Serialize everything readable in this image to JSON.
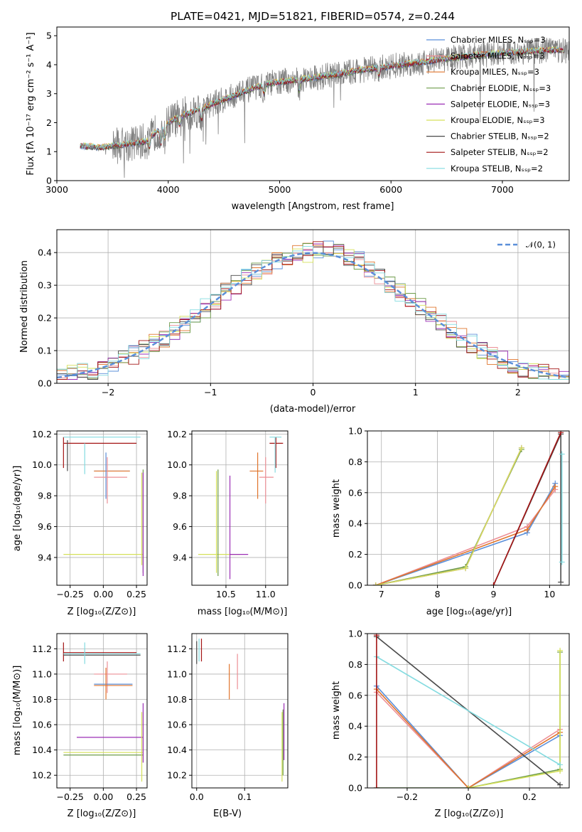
{
  "colors": {
    "Chabrier MILES": "#5b8fd9",
    "Salpeter MILES": "#ec8f96",
    "Kroupa MILES": "#e0752d",
    "Chabrier ELODIE": "#6d9b4a",
    "Salpeter ELODIE": "#9b2fb5",
    "Kroupa ELODIE": "#d5e05a",
    "Chabrier STELIB": "#4a4a4a",
    "Salpeter STELIB": "#a31414",
    "Kroupa STELIB": "#84dbe0",
    "data": "#808080"
  },
  "chart_data": [
    {
      "id": "spectrum",
      "type": "line",
      "title": "PLATE=0421, MJD=51821, FIBERID=0574, z=0.244",
      "xlabel": "wavelength [Angstrom, rest frame]",
      "ylabel": "Flux [fλ 10⁻¹⁷ erg cm⁻² s⁻¹ A⁻¹]",
      "xlim": [
        3000,
        7600
      ],
      "ylim": [
        0,
        5.3
      ],
      "xticks": [
        3000,
        4000,
        5000,
        6000,
        7000
      ],
      "yticks": [
        0,
        1,
        2,
        3,
        4,
        5
      ],
      "grid": false,
      "legend_position": "top-right",
      "legend": [
        "Chabrier MILES, N_SSP=3",
        "Salpeter MILES, N_SSP=3",
        "Kroupa MILES, N_SSP=3",
        "Chabrier ELODIE, N_SSP=3",
        "Salpeter ELODIE, N_SSP=3",
        "Kroupa ELODIE, N_SSP=3",
        "Chabrier STELIB, N_SSP=2",
        "Salpeter STELIB, N_SSP=2",
        "Kroupa STELIB, N_SSP=2"
      ],
      "legend_keys": [
        "Chabrier MILES",
        "Salpeter MILES",
        "Kroupa MILES",
        "Chabrier ELODIE",
        "Salpeter ELODIE",
        "Kroupa ELODIE",
        "Chabrier STELIB",
        "Salpeter STELIB",
        "Kroupa STELIB"
      ],
      "continuum": {
        "x": [
          3200,
          3400,
          3600,
          3800,
          3950,
          4100,
          4300,
          4500,
          4700,
          4900,
          5100,
          5300,
          5500,
          5700,
          5900,
          6100,
          6300,
          6500,
          6800,
          7000,
          7200,
          7400
        ],
        "y": [
          1.2,
          1.15,
          1.25,
          1.35,
          1.9,
          2.2,
          2.5,
          2.8,
          3.1,
          3.35,
          3.45,
          3.55,
          3.65,
          3.8,
          3.9,
          4.0,
          4.1,
          4.2,
          4.35,
          4.4,
          4.45,
          4.5
        ]
      }
    },
    {
      "id": "residuals",
      "type": "line",
      "xlabel": "(data-model)/error",
      "ylabel": "Normed distribution",
      "xlim": [
        -2.5,
        2.5
      ],
      "ylim": [
        0,
        0.47
      ],
      "xticks": [
        -2,
        -1,
        0,
        1,
        2
      ],
      "yticks": [
        0.0,
        0.1,
        0.2,
        0.3,
        0.4
      ],
      "grid": true,
      "legend_position": "top-right",
      "legend": [
        "𝒩(0, 1)"
      ],
      "normal_color": "#5b8fd9"
    },
    {
      "id": "age-vs-Z",
      "type": "scatter",
      "xlabel": "Z [log₁₀(Z/Z⊙)]",
      "ylabel": "age  [log₁₀(age/yr)]",
      "xlim": [
        -0.35,
        0.33
      ],
      "ylim": [
        9.22,
        10.22
      ],
      "xticks": [
        -0.25,
        0.0,
        0.25
      ],
      "yticks": [
        9.4,
        9.6,
        9.8,
        10.0,
        10.2
      ],
      "grid": true,
      "segments": [
        {
          "model": "Salpeter STELIB",
          "x": [
            -0.3,
            0.25
          ],
          "y": [
            10.14,
            10.14
          ]
        },
        {
          "model": "Salpeter STELIB",
          "x": [
            -0.3,
            -0.3
          ],
          "y": [
            9.98,
            10.18
          ]
        },
        {
          "model": "Chabrier STELIB",
          "x": [
            -0.27,
            -0.27
          ],
          "y": [
            9.96,
            10.16
          ]
        },
        {
          "model": "Kroupa STELIB",
          "x": [
            -0.3,
            0.28
          ],
          "y": [
            10.18,
            10.18
          ]
        },
        {
          "model": "Kroupa STELIB",
          "x": [
            -0.14,
            -0.14
          ],
          "y": [
            9.94,
            10.14
          ]
        },
        {
          "model": "Chabrier MILES",
          "x": [
            -0.07,
            0.2
          ],
          "y": [
            9.96,
            9.96
          ]
        },
        {
          "model": "Kroupa MILES",
          "x": [
            -0.07,
            0.2
          ],
          "y": [
            9.96,
            9.96
          ]
        },
        {
          "model": "Chabrier MILES",
          "x": [
            0.02,
            0.02
          ],
          "y": [
            9.78,
            10.08
          ]
        },
        {
          "model": "Salpeter MILES",
          "x": [
            -0.07,
            0.18
          ],
          "y": [
            9.92,
            9.92
          ]
        },
        {
          "model": "Salpeter MILES",
          "x": [
            0.03,
            0.03
          ],
          "y": [
            9.75,
            10.05
          ]
        },
        {
          "model": "Kroupa ELODIE",
          "x": [
            -0.3,
            0.3
          ],
          "y": [
            9.42,
            9.42
          ]
        },
        {
          "model": "Chabrier ELODIE",
          "x": [
            0.3,
            0.3
          ],
          "y": [
            9.3,
            9.97
          ]
        },
        {
          "model": "Salpeter ELODIE",
          "x": [
            0.3,
            0.3
          ],
          "y": [
            9.28,
            9.95
          ]
        },
        {
          "model": "Kroupa ELODIE",
          "x": [
            0.29,
            0.29
          ],
          "y": [
            9.35,
            9.95
          ]
        }
      ]
    },
    {
      "id": "age-vs-mass",
      "type": "scatter",
      "xlabel": "mass [log₁₀(M/M⊙)]",
      "ylabel": "",
      "xlim": [
        10.07,
        11.28
      ],
      "ylim": [
        9.22,
        10.22
      ],
      "xticks": [
        10.5,
        11.0
      ],
      "yticks": [
        9.4,
        9.6,
        9.8,
        10.0,
        10.2
      ],
      "grid": true,
      "segments": [
        {
          "model": "Salpeter STELIB",
          "x": [
            11.05,
            11.22
          ],
          "y": [
            10.14,
            10.14
          ]
        },
        {
          "model": "Salpeter STELIB",
          "x": [
            11.13,
            11.13
          ],
          "y": [
            9.98,
            10.18
          ]
        },
        {
          "model": "Kroupa STELIB",
          "x": [
            11.05,
            11.2
          ],
          "y": [
            10.18,
            10.18
          ]
        },
        {
          "model": "Kroupa STELIB",
          "x": [
            11.12,
            11.12
          ],
          "y": [
            9.95,
            10.18
          ]
        },
        {
          "model": "Kroupa MILES",
          "x": [
            10.8,
            10.97
          ],
          "y": [
            9.96,
            9.96
          ]
        },
        {
          "model": "Kroupa MILES",
          "x": [
            10.9,
            10.9
          ],
          "y": [
            9.78,
            10.08
          ]
        },
        {
          "model": "Salpeter MILES",
          "x": [
            10.92,
            11.1
          ],
          "y": [
            9.92,
            9.92
          ]
        },
        {
          "model": "Salpeter MILES",
          "x": [
            11.0,
            11.0
          ],
          "y": [
            9.75,
            10.05
          ]
        },
        {
          "model": "Kroupa ELODIE",
          "x": [
            10.15,
            10.68
          ],
          "y": [
            9.42,
            9.42
          ]
        },
        {
          "model": "Salpeter ELODIE",
          "x": [
            10.55,
            10.78
          ],
          "y": [
            9.42,
            9.42
          ]
        },
        {
          "model": "Chabrier ELODIE",
          "x": [
            10.4,
            10.4
          ],
          "y": [
            9.28,
            9.97
          ]
        },
        {
          "model": "Kroupa ELODIE",
          "x": [
            10.38,
            10.38
          ],
          "y": [
            9.3,
            9.96
          ]
        },
        {
          "model": "Salpeter ELODIE",
          "x": [
            10.55,
            10.55
          ],
          "y": [
            9.26,
            9.93
          ]
        }
      ]
    },
    {
      "id": "weight-vs-age",
      "type": "line",
      "xlabel": "age  [log₁₀(age/yr)]",
      "ylabel": "mass weight",
      "xlim": [
        6.75,
        10.35
      ],
      "ylim": [
        0.0,
        1.0
      ],
      "xticks": [
        7,
        8,
        9,
        10
      ],
      "yticks": [
        0.0,
        0.2,
        0.4,
        0.6,
        0.8,
        1.0
      ],
      "grid": true,
      "series": [
        {
          "model": "Chabrier MILES",
          "x": [
            6.9,
            9.6,
            10.1
          ],
          "y": [
            0.0,
            0.34,
            0.66
          ]
        },
        {
          "model": "Salpeter MILES",
          "x": [
            6.9,
            9.6,
            10.1
          ],
          "y": [
            0.0,
            0.38,
            0.62
          ]
        },
        {
          "model": "Kroupa MILES",
          "x": [
            6.9,
            9.6,
            10.1
          ],
          "y": [
            0.0,
            0.36,
            0.64
          ]
        },
        {
          "model": "Chabrier ELODIE",
          "x": [
            6.9,
            8.5,
            9.5
          ],
          "y": [
            0.0,
            0.12,
            0.88
          ]
        },
        {
          "model": "Salpeter ELODIE",
          "x": [
            6.9,
            8.5,
            9.5
          ],
          "y": [
            0.0,
            0.11,
            0.89
          ]
        },
        {
          "model": "Kroupa ELODIE",
          "x": [
            6.9,
            8.5,
            9.5
          ],
          "y": [
            0.0,
            0.11,
            0.89
          ]
        },
        {
          "model": "Chabrier STELIB",
          "x": [
            9.0,
            10.2,
            10.2
          ],
          "y": [
            0.0,
            0.98,
            0.02
          ]
        },
        {
          "model": "Salpeter STELIB",
          "x": [
            9.0,
            10.2
          ],
          "y": [
            0.0,
            0.99
          ]
        },
        {
          "model": "Kroupa STELIB",
          "x": [
            10.22,
            10.22
          ],
          "y": [
            0.15,
            0.85
          ]
        }
      ]
    },
    {
      "id": "mass-vs-Z",
      "type": "scatter",
      "xlabel": "Z [log₁₀(Z/Z⊙)]",
      "ylabel": "mass [log₁₀(M/M⊙)]",
      "xlim": [
        -0.35,
        0.33
      ],
      "ylim": [
        10.1,
        11.32
      ],
      "xticks": [
        -0.25,
        0.0,
        0.25
      ],
      "yticks": [
        10.2,
        10.4,
        10.6,
        10.8,
        11.0,
        11.2
      ],
      "grid": true,
      "segments": [
        {
          "model": "Salpeter STELIB",
          "x": [
            -0.3,
            0.25
          ],
          "y": [
            11.17,
            11.17
          ]
        },
        {
          "model": "Salpeter STELIB",
          "x": [
            -0.3,
            -0.3
          ],
          "y": [
            11.1,
            11.25
          ]
        },
        {
          "model": "Chabrier STELIB",
          "x": [
            -0.3,
            0.28
          ],
          "y": [
            11.15,
            11.15
          ]
        },
        {
          "model": "Kroupa STELIB",
          "x": [
            -0.3,
            0.28
          ],
          "y": [
            11.16,
            11.16
          ]
        },
        {
          "model": "Kroupa STELIB",
          "x": [
            -0.14,
            -0.14
          ],
          "y": [
            11.08,
            11.25
          ]
        },
        {
          "model": "Salpeter MILES",
          "x": [
            -0.07,
            0.18
          ],
          "y": [
            11.0,
            11.0
          ]
        },
        {
          "model": "Salpeter MILES",
          "x": [
            0.03,
            0.03
          ],
          "y": [
            10.85,
            11.1
          ]
        },
        {
          "model": "Chabrier MILES",
          "x": [
            -0.07,
            0.22
          ],
          "y": [
            10.92,
            10.92
          ]
        },
        {
          "model": "Kroupa MILES",
          "x": [
            -0.07,
            0.22
          ],
          "y": [
            10.91,
            10.91
          ]
        },
        {
          "model": "Kroupa MILES",
          "x": [
            0.02,
            0.02
          ],
          "y": [
            10.8,
            11.05
          ]
        },
        {
          "model": "Salpeter ELODIE",
          "x": [
            -0.2,
            0.3
          ],
          "y": [
            10.5,
            10.5
          ]
        },
        {
          "model": "Kroupa ELODIE",
          "x": [
            -0.3,
            0.3
          ],
          "y": [
            10.38,
            10.38
          ]
        },
        {
          "model": "Chabrier ELODIE",
          "x": [
            -0.3,
            0.3
          ],
          "y": [
            10.36,
            10.36
          ]
        },
        {
          "model": "Salpeter ELODIE",
          "x": [
            0.3,
            0.3
          ],
          "y": [
            10.3,
            10.77
          ]
        },
        {
          "model": "Kroupa ELODIE",
          "x": [
            0.29,
            0.29
          ],
          "y": [
            10.15,
            10.7
          ]
        }
      ]
    },
    {
      "id": "mass-vs-EBV",
      "type": "scatter",
      "xlabel": "E(B-V)",
      "ylabel": "",
      "xlim": [
        -0.01,
        0.19
      ],
      "ylim": [
        10.1,
        11.32
      ],
      "xticks": [
        0.0,
        0.1
      ],
      "yticks": [
        10.2,
        10.4,
        10.6,
        10.8,
        11.0,
        11.2
      ],
      "grid": true,
      "segments": [
        {
          "model": "Salpeter STELIB",
          "x": [
            0.01,
            0.01
          ],
          "y": [
            11.1,
            11.28
          ]
        },
        {
          "model": "Chabrier STELIB",
          "x": [
            0.0,
            0.0
          ],
          "y": [
            11.08,
            11.26
          ]
        },
        {
          "model": "Kroupa STELIB",
          "x": [
            0.005,
            0.005
          ],
          "y": [
            11.1,
            11.28
          ]
        },
        {
          "model": "Kroupa MILES",
          "x": [
            0.068,
            0.068
          ],
          "y": [
            10.8,
            11.08
          ]
        },
        {
          "model": "Salpeter MILES",
          "x": [
            0.085,
            0.085
          ],
          "y": [
            10.88,
            11.16
          ]
        },
        {
          "model": "Salpeter ELODIE",
          "x": [
            0.182,
            0.182
          ],
          "y": [
            10.32,
            10.77
          ]
        },
        {
          "model": "Kroupa ELODIE",
          "x": [
            0.178,
            0.178
          ],
          "y": [
            10.15,
            10.7
          ]
        },
        {
          "model": "Chabrier ELODIE",
          "x": [
            0.18,
            0.18
          ],
          "y": [
            10.2,
            10.72
          ]
        }
      ]
    },
    {
      "id": "weight-vs-Z",
      "type": "line",
      "xlabel": "Z [log₁₀(Z/Z⊙)]",
      "ylabel": "mass weight",
      "xlim": [
        -0.33,
        0.33
      ],
      "ylim": [
        0.0,
        1.0
      ],
      "xticks": [
        -0.2,
        0.0,
        0.2
      ],
      "yticks": [
        0.0,
        0.2,
        0.4,
        0.6,
        0.8,
        1.0
      ],
      "grid": true,
      "series": [
        {
          "model": "Chabrier MILES",
          "x": [
            -0.3,
            0.0,
            0.3
          ],
          "y": [
            0.66,
            0.0,
            0.34
          ]
        },
        {
          "model": "Salpeter MILES",
          "x": [
            -0.3,
            0.0,
            0.3
          ],
          "y": [
            0.62,
            0.0,
            0.38
          ]
        },
        {
          "model": "Kroupa MILES",
          "x": [
            -0.3,
            0.0,
            0.3
          ],
          "y": [
            0.64,
            0.0,
            0.36
          ]
        },
        {
          "model": "Chabrier ELODIE",
          "x": [
            -0.3,
            0.0,
            0.3,
            0.3
          ],
          "y": [
            0.0,
            0.0,
            0.12,
            0.88
          ]
        },
        {
          "model": "Kroupa ELODIE",
          "x": [
            0.0,
            0.3,
            0.3
          ],
          "y": [
            0.0,
            0.11,
            0.89
          ]
        },
        {
          "model": "Chabrier STELIB",
          "x": [
            -0.3,
            0.3
          ],
          "y": [
            0.98,
            0.02
          ]
        },
        {
          "model": "Kroupa STELIB",
          "x": [
            -0.3,
            0.3
          ],
          "y": [
            0.85,
            0.15
          ]
        },
        {
          "model": "Salpeter STELIB",
          "x": [
            -0.3,
            -0.3
          ],
          "y": [
            0.0,
            0.99
          ]
        }
      ]
    }
  ]
}
